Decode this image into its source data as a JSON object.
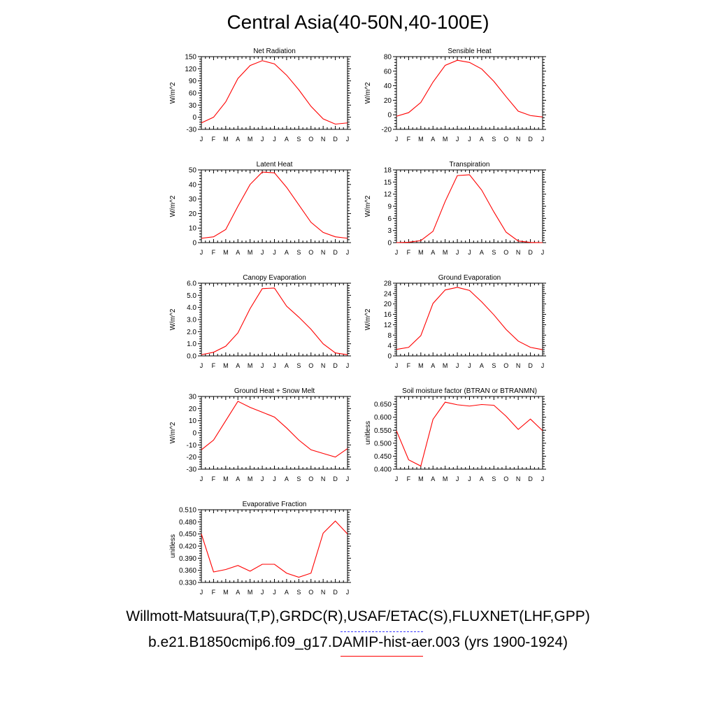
{
  "page_title": "Central Asia(40-50N,40-100E)",
  "footer": {
    "observations": "Willmott-Matsuura(T,P),GRDC(R),USAF/ETAC(S),FLUXNET(LHF,GPP)",
    "model": "b.e21.B1850cmip6.f09_g17.DAMIP-hist-aer.003 (yrs 1900-1924)"
  },
  "colors": {
    "model_line": "#ff0000",
    "observations_line": "#3b3bff",
    "axis": "#000000"
  },
  "months": [
    "J",
    "F",
    "M",
    "A",
    "M",
    "J",
    "J",
    "A",
    "S",
    "O",
    "N",
    "D",
    "J"
  ],
  "chart_data": [
    {
      "type": "line",
      "title": "Net Radiation",
      "ylabel": "W/m^2",
      "ylim": [
        -30,
        150
      ],
      "yticks": [
        "-30",
        "0",
        "30",
        "60",
        "90",
        "120",
        "150"
      ],
      "tick_values": [
        -30,
        0,
        30,
        60,
        90,
        120,
        150
      ],
      "x": [
        "J",
        "F",
        "M",
        "A",
        "M",
        "J",
        "J",
        "A",
        "S",
        "O",
        "N",
        "D",
        "J"
      ],
      "series": [
        {
          "values": [
            -14,
            0,
            38,
            96,
            128,
            140,
            132,
            104,
            68,
            27,
            -4,
            -17,
            -14
          ]
        }
      ]
    },
    {
      "type": "line",
      "title": "Sensible Heat",
      "ylabel": "W/m^2",
      "ylim": [
        -20,
        80
      ],
      "yticks": [
        "-20",
        "0",
        "20",
        "40",
        "60",
        "80"
      ],
      "tick_values": [
        -20,
        0,
        20,
        40,
        60,
        80
      ],
      "x": [
        "J",
        "F",
        "M",
        "A",
        "M",
        "J",
        "J",
        "A",
        "S",
        "O",
        "N",
        "D",
        "J"
      ],
      "series": [
        {
          "values": [
            -2,
            3,
            17,
            45,
            68,
            75,
            72,
            63,
            46,
            25,
            5,
            -1,
            -3
          ]
        }
      ]
    },
    {
      "type": "line",
      "title": "Latent Heat",
      "ylabel": "W/m^2",
      "ylim": [
        0,
        50
      ],
      "yticks": [
        "0",
        "10",
        "20",
        "30",
        "40",
        "50"
      ],
      "tick_values": [
        0,
        10,
        20,
        30,
        40,
        50
      ],
      "x": [
        "J",
        "F",
        "M",
        "A",
        "M",
        "J",
        "J",
        "A",
        "S",
        "O",
        "N",
        "D",
        "J"
      ],
      "series": [
        {
          "values": [
            3,
            4,
            9,
            25,
            40,
            48.5,
            48,
            38,
            26,
            14,
            7,
            4,
            3
          ]
        }
      ]
    },
    {
      "type": "line",
      "title": "Transpiration",
      "ylabel": "W/m^2",
      "ylim": [
        0,
        18
      ],
      "yticks": [
        "0",
        "3",
        "6",
        "9",
        "12",
        "15",
        "18"
      ],
      "tick_values": [
        0,
        3,
        6,
        9,
        12,
        15,
        18
      ],
      "x": [
        "J",
        "F",
        "M",
        "A",
        "M",
        "J",
        "J",
        "A",
        "S",
        "O",
        "N",
        "D",
        "J"
      ],
      "series": [
        {
          "values": [
            0,
            0.1,
            0.5,
            2.8,
            10.2,
            16.6,
            16.8,
            13,
            7.6,
            2.6,
            0.4,
            0.05,
            0
          ]
        }
      ]
    },
    {
      "type": "line",
      "title": "Canopy Evaporation",
      "ylabel": "W/m^2",
      "ylim": [
        0,
        6
      ],
      "yticks": [
        "0.0",
        "1.0",
        "2.0",
        "3.0",
        "4.0",
        "5.0",
        "6.0"
      ],
      "tick_values": [
        0,
        1,
        2,
        3,
        4,
        5,
        6
      ],
      "x": [
        "J",
        "F",
        "M",
        "A",
        "M",
        "J",
        "J",
        "A",
        "S",
        "O",
        "N",
        "D",
        "J"
      ],
      "series": [
        {
          "values": [
            0.1,
            0.3,
            0.8,
            1.9,
            3.9,
            5.55,
            5.6,
            4.1,
            3.2,
            2.2,
            1.0,
            0.25,
            0.1
          ]
        }
      ]
    },
    {
      "type": "line",
      "title": "Ground Evaporation",
      "ylabel": "W/m^2",
      "ylim": [
        0,
        28
      ],
      "yticks": [
        "0",
        "4",
        "8",
        "12",
        "16",
        "20",
        "24",
        "28"
      ],
      "tick_values": [
        0,
        4,
        8,
        12,
        16,
        20,
        24,
        28
      ],
      "x": [
        "J",
        "F",
        "M",
        "A",
        "M",
        "J",
        "J",
        "A",
        "S",
        "O",
        "N",
        "D",
        "J"
      ],
      "series": [
        {
          "values": [
            2.5,
            3.3,
            7.8,
            20.2,
            25.4,
            26.4,
            25.2,
            20.8,
            15.8,
            10.2,
            5.7,
            3.3,
            2.4
          ]
        }
      ]
    },
    {
      "type": "line",
      "title": "Ground Heat + Snow Melt",
      "ylabel": "W/m^2",
      "ylim": [
        -30,
        30
      ],
      "yticks": [
        "-30",
        "-20",
        "-10",
        "0",
        "10",
        "20",
        "30"
      ],
      "tick_values": [
        -30,
        -20,
        -10,
        0,
        10,
        20,
        30
      ],
      "x": [
        "J",
        "F",
        "M",
        "A",
        "M",
        "J",
        "J",
        "A",
        "S",
        "O",
        "N",
        "D",
        "J"
      ],
      "series": [
        {
          "values": [
            -14,
            -6,
            10,
            26,
            21,
            17,
            13,
            4,
            -6,
            -14,
            -17,
            -20,
            -13
          ]
        }
      ]
    },
    {
      "type": "line",
      "title": "Soil moisture factor (BTRAN or BTRANMN)",
      "ylabel": "unitless",
      "ylim": [
        0.4,
        0.68
      ],
      "yticks": [
        "0.400",
        "0.450",
        "0.500",
        "0.550",
        "0.600",
        "0.650"
      ],
      "tick_values": [
        0.4,
        0.45,
        0.5,
        0.55,
        0.6,
        0.65
      ],
      "x": [
        "J",
        "F",
        "M",
        "A",
        "M",
        "J",
        "J",
        "A",
        "S",
        "O",
        "N",
        "D",
        "J"
      ],
      "series": [
        {
          "values": [
            0.548,
            0.436,
            0.412,
            0.592,
            0.658,
            0.648,
            0.643,
            0.649,
            0.646,
            0.604,
            0.553,
            0.593,
            0.548
          ]
        }
      ]
    },
    {
      "type": "line",
      "title": "Evaporative Fraction",
      "ylabel": "unitless",
      "ylim": [
        0.33,
        0.51
      ],
      "yticks": [
        "0.330",
        "0.360",
        "0.390",
        "0.420",
        "0.450",
        "0.480",
        "0.510"
      ],
      "tick_values": [
        0.33,
        0.36,
        0.39,
        0.42,
        0.45,
        0.48,
        0.51
      ],
      "x": [
        "J",
        "F",
        "M",
        "A",
        "M",
        "J",
        "J",
        "A",
        "S",
        "O",
        "N",
        "D",
        "J"
      ],
      "series": [
        {
          "values": [
            0.45,
            0.356,
            0.362,
            0.372,
            0.358,
            0.375,
            0.375,
            0.353,
            0.343,
            0.353,
            0.452,
            0.482,
            0.45
          ]
        }
      ]
    }
  ]
}
